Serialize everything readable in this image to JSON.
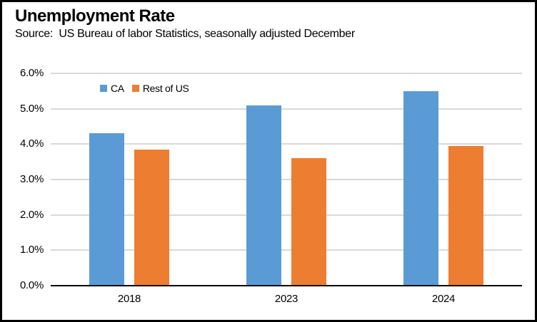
{
  "header": {
    "title": "Unemployment Rate",
    "subtitle": "Source:  US Bureau of labor Statistics, seasonally adjusted December"
  },
  "colors": {
    "ca_series": "#5B9BD5",
    "rest_of_us_series": "#ED7D31",
    "gridline": "#D9D9D9",
    "axis_line": "#000000",
    "frame_border": "#000000",
    "background": "#FFFFFF"
  },
  "chart_data": {
    "type": "bar",
    "title": "Unemployment Rate",
    "subtitle": "Source:  US Bureau of labor Statistics, seasonally adjusted December",
    "categories": [
      "2018",
      "2023",
      "2024"
    ],
    "series": [
      {
        "name": "CA",
        "color": "#5B9BD5",
        "values": [
          4.3,
          5.1,
          5.5
        ]
      },
      {
        "name": "Rest of US",
        "color": "#ED7D31",
        "values": [
          3.85,
          3.6,
          3.95
        ]
      }
    ],
    "xlabel": "",
    "ylabel": "",
    "y_ticks": [
      "6.0%",
      "5.0%",
      "4.0%",
      "3.0%",
      "2.0%",
      "1.0%",
      "0.0%"
    ],
    "ylim": [
      0,
      6
    ],
    "grid": "horizontal",
    "legend_position": "top-left-inside"
  }
}
